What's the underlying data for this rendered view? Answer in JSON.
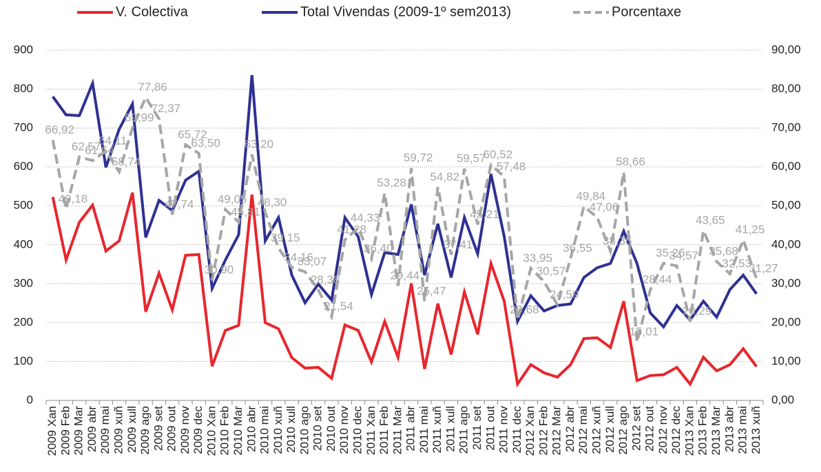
{
  "chart_data": {
    "type": "line",
    "categories": [
      "2009 Xan",
      "2009 Feb",
      "2009 Mar",
      "2009 abr",
      "2009 mai",
      "2009 xuñ",
      "2009 xull",
      "2009 ago",
      "2009 set",
      "2009 out",
      "2009 nov",
      "2009 dec",
      "2010 Xan",
      "2010 Feb",
      "2010 Mar",
      "2010 abr",
      "2010 mai",
      "2010 xuñ",
      "2010 xull",
      "2010 ago",
      "2010 set",
      "2010 out",
      "2010 nov",
      "2010 dec",
      "2011 Xan",
      "2011 Feb",
      "2011 Mar",
      "2011 abr",
      "2011 mai",
      "2011 xuñ",
      "2011 xull",
      "2011 ago",
      "2011 set",
      "2011 out",
      "2011 nov",
      "2011 dec",
      "2012 Xan",
      "2012 Feb",
      "2012 Mar",
      "2012 abr",
      "2012 mai",
      "2012 xuñ",
      "2012 xull",
      "2012 ago",
      "2012 set",
      "2012 out",
      "2012 nov",
      "2012 dec",
      "2013 Xan",
      "2013 Feb",
      "2013 Mar",
      "2013 abr",
      "2013 mai",
      "2013 xuñ"
    ],
    "series": [
      {
        "name": "V. Colectiva",
        "color": "#e8262d",
        "values": [
          523,
          361,
          458,
          502,
          384,
          410,
          534,
          228,
          327,
          233,
          373,
          375,
          88,
          180,
          193,
          529,
          200,
          184,
          110,
          83,
          85,
          57,
          194,
          180,
          99,
          203,
          111,
          301,
          81,
          249,
          118,
          279,
          170,
          352,
          255,
          42,
          92,
          71,
          60,
          92,
          159,
          161,
          136,
          255,
          51,
          64,
          66,
          85,
          42,
          111,
          76,
          92,
          133,
          87
        ]
      },
      {
        "name": "Total Vivendas (2009-1º sem2013)",
        "color": "#2e3192",
        "values": [
          781,
          734,
          732,
          815,
          599,
          697,
          762,
          419,
          514,
          488,
          566,
          589,
          288,
          361,
          426,
          836,
          410,
          470,
          322,
          251,
          299,
          258,
          470,
          421,
          272,
          380,
          375,
          504,
          322,
          454,
          316,
          470,
          377,
          582,
          421,
          203,
          269,
          230,
          244,
          248,
          316,
          341,
          352,
          435,
          352,
          225,
          189,
          244,
          207,
          255,
          214,
          285,
          322,
          274
        ]
      },
      {
        "name": "Porcentaxe",
        "color": "#a6a6a6",
        "axis": "y2",
        "dashed": true,
        "values": [
          66.92,
          49.18,
          62.57,
          61.64,
          64.11,
          58.74,
          69.99,
          77.86,
          72.37,
          47.74,
          65.72,
          63.5,
          30.9,
          49.05,
          45.81,
          63.2,
          48.3,
          39.15,
          34.16,
          33.07,
          28.38,
          21.54,
          41.28,
          44.33,
          36.4,
          53.28,
          29.44,
          59.72,
          25.47,
          54.82,
          37.41,
          59.57,
          45.21,
          60.52,
          57.48,
          20.68,
          33.95,
          30.57,
          24.59,
          36.55,
          49.84,
          47.06,
          38.35,
          58.66,
          15.01,
          28.44,
          35.26,
          34.57,
          20.29,
          43.65,
          35.68,
          32.53,
          41.25,
          31.27
        ],
        "value_labels": [
          "66,92",
          "49,18",
          "62,57",
          "61,64",
          "64,11",
          "58,74",
          "69,99",
          "77,86",
          "72,37",
          "47,74",
          "65,72",
          "63,50",
          "30,90",
          "49,05",
          "45,81",
          "63,20",
          "48,30",
          "39,15",
          "34,16",
          "33,07",
          "28,38",
          "21,54",
          "41,28",
          "44,33",
          "36,40",
          "53,28",
          "29,44",
          "59,72",
          "25,47",
          "54,82",
          "37,41",
          "59,57",
          "45,21",
          "60,52",
          "57,48",
          "20,68",
          "33,95",
          "30,57",
          "24,59",
          "36,55",
          "49,84",
          "47,06",
          "38,35",
          "58,66",
          "15,01",
          "28,44",
          "35,26",
          "34,57",
          "20,29",
          "43,65",
          "35,68",
          "32,53",
          "41,25",
          "31,27"
        ]
      }
    ],
    "ylim": [
      0,
      900
    ],
    "yticks": [
      0,
      100,
      200,
      300,
      400,
      500,
      600,
      700,
      800,
      900
    ],
    "y2lim": [
      0,
      90
    ],
    "y2ticks": [
      {
        "value": 0,
        "label": "0,00"
      },
      {
        "value": 10,
        "label": "10,00"
      },
      {
        "value": 20,
        "label": "20,00"
      },
      {
        "value": 30,
        "label": "30,00"
      },
      {
        "value": 40,
        "label": "40,00"
      },
      {
        "value": 50,
        "label": "50,00"
      },
      {
        "value": 60,
        "label": "60,00"
      },
      {
        "value": 70,
        "label": "70,00"
      },
      {
        "value": 80,
        "label": "80,00"
      },
      {
        "value": 90,
        "label": "90,00"
      }
    ],
    "grid": true,
    "legend": "top"
  }
}
